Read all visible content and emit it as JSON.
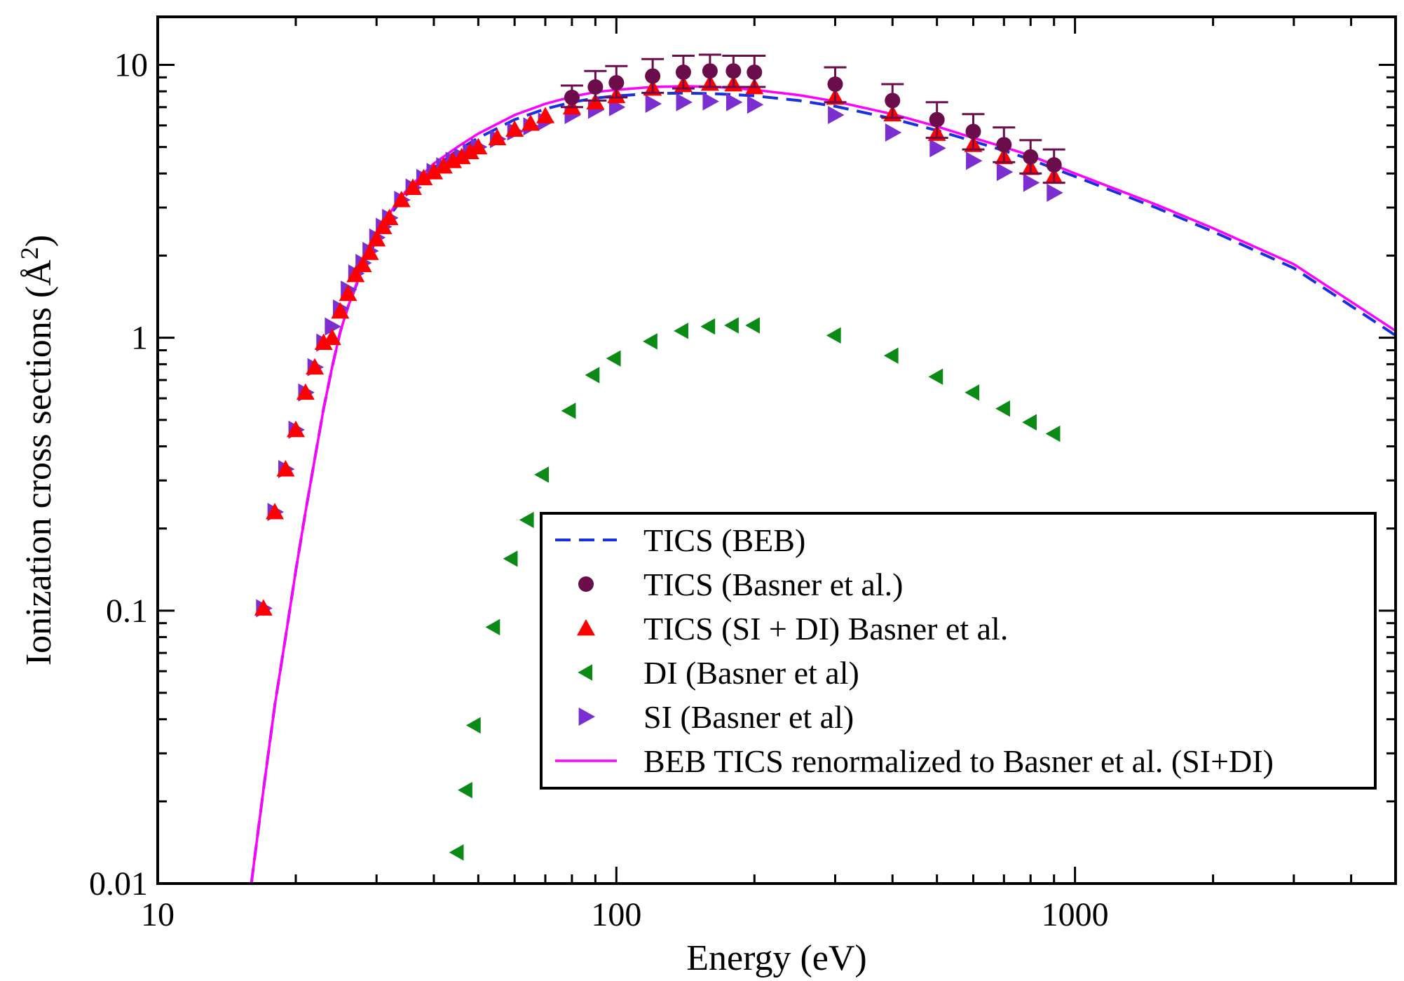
{
  "chart_data": {
    "type": "scatter",
    "title": "",
    "xlabel": "Energy (eV)",
    "ylabel_main": "Ionization cross sections (",
    "ylabel_unit": "Å",
    "ylabel_power": "2",
    "ylabel_close": ")",
    "xscale": "log",
    "yscale": "log",
    "xlim": [
      10,
      5000
    ],
    "ylim": [
      0.01,
      15
    ],
    "x_ticks": [
      {
        "value": 10,
        "label": "10"
      },
      {
        "value": 100,
        "label": "100"
      },
      {
        "value": 1000,
        "label": "1000"
      }
    ],
    "y_ticks": [
      {
        "value": 0.01,
        "label": "0.01"
      },
      {
        "value": 0.1,
        "label": "0.1"
      },
      {
        "value": 1,
        "label": "1"
      },
      {
        "value": 10,
        "label": "10"
      }
    ],
    "legend_position": "lower-right",
    "series": [
      {
        "name": "TICS (BEB)",
        "kind": "line",
        "style": "dashed",
        "color": "#1a2fe0",
        "x": [
          16,
          17,
          18,
          19,
          20,
          21,
          22,
          23,
          24,
          25,
          26,
          28,
          30,
          32,
          35,
          40,
          45,
          50,
          60,
          70,
          80,
          90,
          100,
          120,
          140,
          160,
          180,
          200,
          250,
          300,
          400,
          500,
          600,
          700,
          800,
          1000,
          1500,
          2000,
          3000,
          5000
        ],
        "y": [
          0.01,
          0.022,
          0.045,
          0.08,
          0.14,
          0.23,
          0.36,
          0.55,
          0.78,
          1.05,
          1.3,
          1.8,
          2.3,
          2.8,
          3.4,
          4.2,
          4.85,
          5.4,
          6.3,
          6.9,
          7.3,
          7.55,
          7.7,
          7.85,
          7.88,
          7.85,
          7.78,
          7.7,
          7.4,
          7.05,
          6.35,
          5.75,
          5.25,
          4.85,
          4.5,
          3.9,
          3.0,
          2.45,
          1.8,
          1.02
        ]
      },
      {
        "name": "TICS (Basner et al.)",
        "kind": "scatter",
        "marker": "circle",
        "color": "#6b0d4a",
        "x": [
          80,
          90,
          100,
          120,
          140,
          160,
          180,
          200,
          300,
          400,
          500,
          600,
          700,
          800,
          900
        ],
        "y": [
          7.6,
          8.3,
          8.6,
          9.1,
          9.4,
          9.5,
          9.5,
          9.4,
          8.5,
          7.4,
          6.3,
          5.7,
          5.1,
          4.6,
          4.3
        ],
        "yerr_upper": [
          8.4,
          9.5,
          9.9,
          10.5,
          10.8,
          10.9,
          10.8,
          10.8,
          9.8,
          8.5,
          7.3,
          6.6,
          5.9,
          5.3,
          4.9
        ],
        "yerr_lower": [
          7.0,
          7.4,
          7.6,
          7.9,
          8.2,
          8.3,
          8.3,
          8.3,
          7.3,
          6.4,
          5.4,
          4.9,
          4.4,
          4.0,
          3.7
        ]
      },
      {
        "name": "TICS (SI + DI) Basner et al.",
        "kind": "scatter",
        "marker": "triangle-up",
        "color": "#ff0000",
        "x": [
          17,
          18,
          19,
          20,
          21,
          22,
          23,
          24,
          25,
          26,
          27,
          28,
          29,
          30,
          31,
          32,
          34,
          36,
          38,
          40,
          42,
          44,
          46,
          48,
          50,
          55,
          60,
          65,
          70,
          80,
          90,
          100,
          120,
          140,
          160,
          180,
          200,
          300,
          400,
          500,
          600,
          700,
          800,
          900
        ],
        "y": [
          0.102,
          0.23,
          0.33,
          0.46,
          0.63,
          0.78,
          0.96,
          1.0,
          1.25,
          1.45,
          1.7,
          1.85,
          2.05,
          2.3,
          2.55,
          2.75,
          3.2,
          3.55,
          3.85,
          4.05,
          4.25,
          4.45,
          4.6,
          4.8,
          5.0,
          5.4,
          5.8,
          6.1,
          6.5,
          7.0,
          7.3,
          7.7,
          8.2,
          8.45,
          8.55,
          8.5,
          8.3,
          7.6,
          6.6,
          5.6,
          5.1,
          4.6,
          4.2,
          3.9
        ]
      },
      {
        "name": "DI (Basner et al)",
        "kind": "scatter",
        "marker": "triangle-left",
        "color": "#0b8a15",
        "x": [
          45,
          47,
          49,
          54,
          59,
          64,
          69,
          79,
          89,
          99,
          119,
          139,
          159,
          179,
          199,
          299,
          399,
          499,
          599,
          699,
          799,
          899
        ],
        "y": [
          0.013,
          0.022,
          0.038,
          0.087,
          0.155,
          0.215,
          0.315,
          0.54,
          0.73,
          0.84,
          0.97,
          1.06,
          1.1,
          1.11,
          1.11,
          1.02,
          0.86,
          0.72,
          0.63,
          0.55,
          0.49,
          0.445
        ]
      },
      {
        "name": "SI (Basner et al)",
        "kind": "scatter",
        "marker": "triangle-right",
        "color": "#7b2fd0",
        "x": [
          17,
          18,
          19,
          20,
          21,
          22,
          23,
          24,
          25,
          26,
          27,
          28,
          29,
          30,
          31,
          32,
          34,
          36,
          38,
          40,
          42,
          44,
          46,
          48,
          50,
          55,
          60,
          65,
          70,
          80,
          90,
          100,
          120,
          140,
          160,
          180,
          200,
          300,
          400,
          500,
          600,
          700,
          800,
          900
        ],
        "y": [
          0.102,
          0.23,
          0.33,
          0.46,
          0.63,
          0.78,
          0.96,
          1.1,
          1.28,
          1.5,
          1.72,
          1.88,
          2.08,
          2.33,
          2.55,
          2.75,
          3.2,
          3.55,
          3.85,
          4.05,
          4.25,
          4.45,
          4.6,
          4.8,
          5.0,
          5.35,
          5.7,
          5.95,
          6.2,
          6.55,
          6.85,
          7.0,
          7.2,
          7.3,
          7.35,
          7.3,
          7.15,
          6.55,
          5.65,
          4.95,
          4.45,
          4.05,
          3.7,
          3.4
        ]
      },
      {
        "name": "BEB TICS renormalized to Basner et al. (SI+DI)",
        "kind": "line",
        "style": "solid",
        "color": "#ff00ff",
        "x": [
          16,
          17,
          18,
          19,
          20,
          21,
          22,
          23,
          24,
          25,
          26,
          28,
          30,
          32,
          35,
          40,
          45,
          50,
          60,
          70,
          80,
          90,
          100,
          120,
          140,
          160,
          180,
          200,
          250,
          300,
          400,
          500,
          600,
          700,
          800,
          1000,
          1500,
          2000,
          3000,
          5000
        ],
        "y": [
          0.01,
          0.022,
          0.045,
          0.08,
          0.14,
          0.23,
          0.36,
          0.55,
          0.78,
          1.05,
          1.3,
          1.82,
          2.35,
          2.85,
          3.5,
          4.35,
          5.0,
          5.6,
          6.55,
          7.2,
          7.65,
          7.95,
          8.1,
          8.3,
          8.35,
          8.32,
          8.22,
          8.1,
          7.75,
          7.35,
          6.6,
          5.95,
          5.4,
          5.0,
          4.65,
          4.0,
          3.08,
          2.52,
          1.86,
          1.06
        ]
      }
    ]
  }
}
